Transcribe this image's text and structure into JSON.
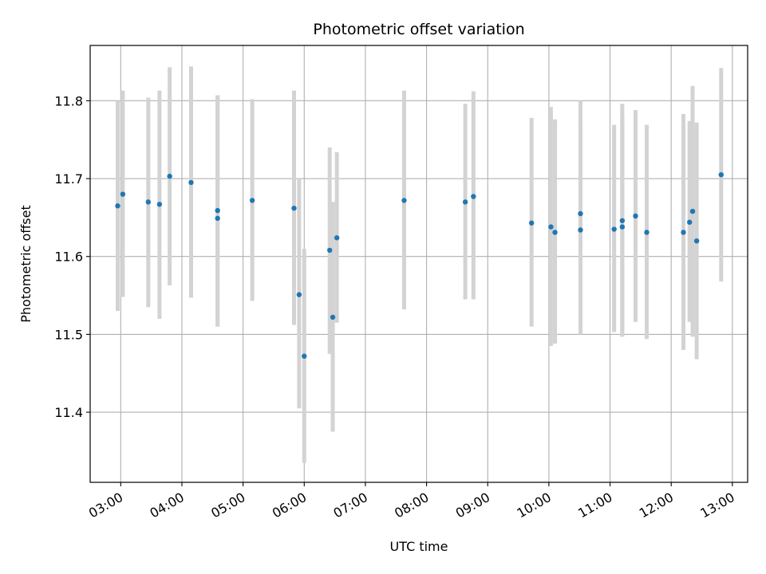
{
  "chart_data": {
    "type": "scatter",
    "title": "Photometric offset variation",
    "xlabel": "UTC time",
    "ylabel": "Photometric offset",
    "xlim": [
      "02:30",
      "13:15"
    ],
    "ylim": [
      11.31,
      11.871
    ],
    "x_ticks": [
      "03:00",
      "04:00",
      "05:00",
      "06:00",
      "07:00",
      "08:00",
      "09:00",
      "10:00",
      "11:00",
      "12:00",
      "13:00"
    ],
    "y_ticks": [
      11.4,
      11.5,
      11.6,
      11.7,
      11.8
    ],
    "grid": true,
    "colors": {
      "point": "#1f77b4",
      "errorbar": "#d3d3d3",
      "grid": "#b0b0b0"
    },
    "series": [
      {
        "points": [
          {
            "x": "02:57",
            "y": 11.665,
            "low": 11.53,
            "high": 11.8
          },
          {
            "x": "03:02",
            "y": 11.68,
            "low": 11.548,
            "high": 11.813
          },
          {
            "x": "03:27",
            "y": 11.67,
            "low": 11.535,
            "high": 11.804
          },
          {
            "x": "03:38",
            "y": 11.667,
            "low": 11.52,
            "high": 11.813
          },
          {
            "x": "03:48",
            "y": 11.703,
            "low": 11.563,
            "high": 11.843
          },
          {
            "x": "04:09",
            "y": 11.695,
            "low": 11.547,
            "high": 11.844
          },
          {
            "x": "04:35",
            "y": 11.659,
            "low": 11.51,
            "high": 11.807
          },
          {
            "x": "04:35",
            "y": 11.649,
            "low": 11.51,
            "high": 11.807
          },
          {
            "x": "05:09",
            "y": 11.672,
            "low": 11.543,
            "high": 11.802
          },
          {
            "x": "05:50",
            "y": 11.662,
            "low": 11.512,
            "high": 11.813
          },
          {
            "x": "05:55",
            "y": 11.551,
            "low": 11.405,
            "high": 11.7
          },
          {
            "x": "06:00",
            "y": 11.472,
            "low": 11.335,
            "high": 11.61
          },
          {
            "x": "06:25",
            "y": 11.608,
            "low": 11.475,
            "high": 11.74
          },
          {
            "x": "06:28",
            "y": 11.522,
            "low": 11.375,
            "high": 11.67
          },
          {
            "x": "06:32",
            "y": 11.624,
            "low": 11.515,
            "high": 11.734
          },
          {
            "x": "07:38",
            "y": 11.672,
            "low": 11.532,
            "high": 11.813
          },
          {
            "x": "08:38",
            "y": 11.67,
            "low": 11.545,
            "high": 11.796
          },
          {
            "x": "08:46",
            "y": 11.677,
            "low": 11.545,
            "high": 11.812
          },
          {
            "x": "09:43",
            "y": 11.643,
            "low": 11.51,
            "high": 11.778
          },
          {
            "x": "10:02",
            "y": 11.638,
            "low": 11.485,
            "high": 11.792
          },
          {
            "x": "10:06",
            "y": 11.631,
            "low": 11.488,
            "high": 11.776
          },
          {
            "x": "10:31",
            "y": 11.655,
            "low": 11.5,
            "high": 11.8
          },
          {
            "x": "10:31",
            "y": 11.634,
            "low": 11.5,
            "high": 11.769
          },
          {
            "x": "11:04",
            "y": 11.635,
            "low": 11.503,
            "high": 11.769
          },
          {
            "x": "11:12",
            "y": 11.646,
            "low": 11.497,
            "high": 11.796
          },
          {
            "x": "11:12",
            "y": 11.638,
            "low": 11.497,
            "high": 11.78
          },
          {
            "x": "11:25",
            "y": 11.652,
            "low": 11.516,
            "high": 11.788
          },
          {
            "x": "11:36",
            "y": 11.631,
            "low": 11.494,
            "high": 11.769
          },
          {
            "x": "12:12",
            "y": 11.631,
            "low": 11.48,
            "high": 11.783
          },
          {
            "x": "12:18",
            "y": 11.644,
            "low": 11.516,
            "high": 11.774
          },
          {
            "x": "12:21",
            "y": 11.658,
            "low": 11.497,
            "high": 11.819
          },
          {
            "x": "12:25",
            "y": 11.62,
            "low": 11.468,
            "high": 11.772
          },
          {
            "x": "12:49",
            "y": 11.705,
            "low": 11.568,
            "high": 11.842
          }
        ]
      }
    ]
  }
}
